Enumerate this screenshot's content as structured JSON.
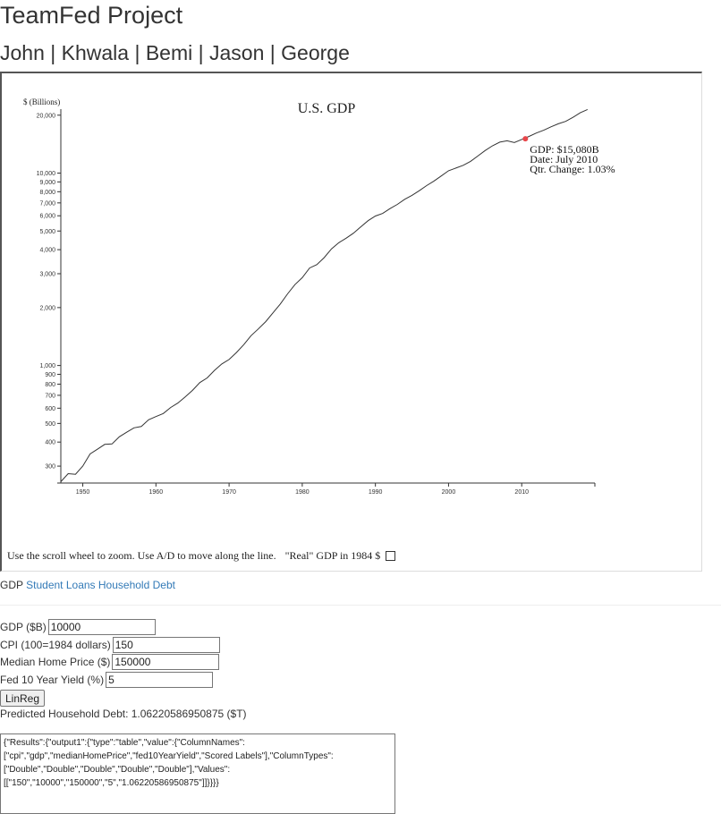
{
  "header": {
    "title": "TeamFed Project",
    "members": [
      "John",
      "Khwala",
      "Bemi",
      "Jason",
      "George"
    ],
    "separator": " | "
  },
  "chart_data": {
    "type": "line",
    "title": "U.S. GDP",
    "ylabel": "$ (Billions)",
    "xlabel": "",
    "y_scale": "log",
    "ylim": [
      245,
      21500
    ],
    "xlim": [
      1947,
      2020
    ],
    "x_ticks": [
      1950,
      1960,
      1970,
      1980,
      1990,
      2000,
      2010
    ],
    "y_ticks": [
      {
        "value": 300,
        "label": "300"
      },
      {
        "value": 400,
        "label": "400"
      },
      {
        "value": 500,
        "label": "500"
      },
      {
        "value": 600,
        "label": "600"
      },
      {
        "value": 700,
        "label": "700"
      },
      {
        "value": 800,
        "label": "800"
      },
      {
        "value": 900,
        "label": "900"
      },
      {
        "value": 1000,
        "label": "1,000"
      },
      {
        "value": 2000,
        "label": "2,000"
      },
      {
        "value": 3000,
        "label": "3,000"
      },
      {
        "value": 4000,
        "label": "4,000"
      },
      {
        "value": 5000,
        "label": "5,000"
      },
      {
        "value": 6000,
        "label": "6,000"
      },
      {
        "value": 7000,
        "label": "7,000"
      },
      {
        "value": 8000,
        "label": "8,000"
      },
      {
        "value": 9000,
        "label": "9,000"
      },
      {
        "value": 10000,
        "label": "10,000"
      },
      {
        "value": 20000,
        "label": "20,000"
      }
    ],
    "series": [
      {
        "x": [
          1947,
          1948,
          1949,
          1950,
          1951,
          1952,
          1953,
          1954,
          1955,
          1956,
          1957,
          1958,
          1959,
          1960,
          1961,
          1962,
          1963,
          1964,
          1965,
          1966,
          1967,
          1968,
          1969,
          1970,
          1971,
          1972,
          1973,
          1974,
          1975,
          1976,
          1977,
          1978,
          1979,
          1980,
          1981,
          1982,
          1983,
          1984,
          1985,
          1986,
          1987,
          1988,
          1989,
          1990,
          1991,
          1992,
          1993,
          1994,
          1995,
          1996,
          1997,
          1998,
          1999,
          2000,
          2001,
          2002,
          2003,
          2004,
          2005,
          2006,
          2007,
          2008,
          2009,
          2010,
          2011,
          2012,
          2013,
          2014,
          2015,
          2016,
          2017,
          2018,
          2019
        ],
        "values": [
          249,
          274,
          272,
          300,
          347,
          367,
          389,
          391,
          426,
          450,
          474,
          482,
          522,
          543,
          563,
          605,
          638,
          686,
          743,
          815,
          862,
          943,
          1019,
          1075,
          1168,
          1283,
          1428,
          1549,
          1689,
          1878,
          2086,
          2357,
          2632,
          2862,
          3211,
          3345,
          3638,
          4041,
          4347,
          4590,
          4870,
          5253,
          5658,
          5980,
          6174,
          6539,
          6879,
          7309,
          7664,
          8100,
          8609,
          9089,
          9661,
          10285,
          10622,
          10978,
          11511,
          12275,
          13094,
          13856,
          14478,
          14719,
          14419,
          14964,
          15518,
          16155,
          16692,
          17393,
          18037,
          18569,
          19485,
          20580,
          21400
        ]
      }
    ],
    "highlight": {
      "x": 2010.5,
      "value": 15080
    },
    "tooltip": {
      "gdp": "GDP: $15,080B",
      "date": "Date: July 2010",
      "change": "Qtr. Change: 1.03%"
    },
    "colors": {
      "line": "#333333",
      "marker": "#e8474b"
    }
  },
  "chart_footer": {
    "instructions": "Use the scroll wheel to zoom. Use A/D to move along the line.",
    "real_label": "\"Real\" GDP in 1984 $",
    "real_checked": false
  },
  "tabs": {
    "current": "GDP",
    "links": [
      "Student Loans",
      "Household Debt"
    ]
  },
  "form": {
    "gdp": {
      "label": "GDP ($B)",
      "value": "10000"
    },
    "cpi": {
      "label": "CPI (100=1984 dollars)",
      "value": "150"
    },
    "home_price": {
      "label": "Median Home Price ($)",
      "value": "150000"
    },
    "yield": {
      "label": "Fed 10 Year Yield (%)",
      "value": "5"
    },
    "button_label": "LinReg",
    "prediction": "Predicted Household Debt: 1.06220586950875 ($T)"
  },
  "results_json": "{\"Results\":{\"output1\":{\"type\":\"table\",\"value\":{\"ColumnNames\":[\"cpi\",\"gdp\",\"medianHomePrice\",\"fed10YearYield\",\"Scored Labels\"],\"ColumnTypes\":[\"Double\",\"Double\",\"Double\",\"Double\",\"Double\"],\"Values\":[[\"150\",\"10000\",\"150000\",\"5\",\"1.06220586950875\"]]}}}}"
}
